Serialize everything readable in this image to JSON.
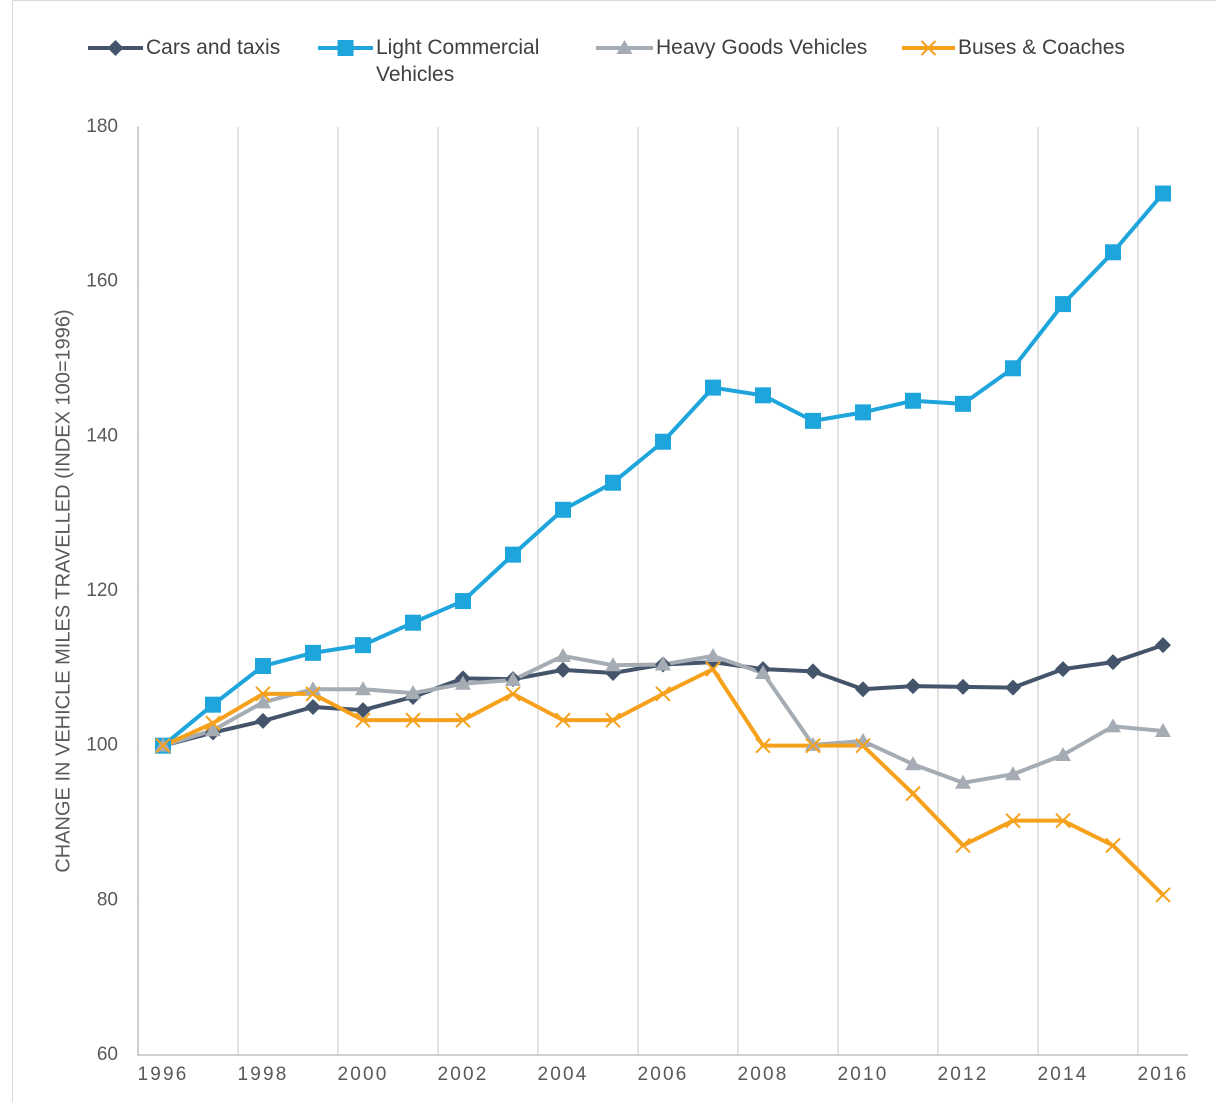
{
  "chart_data": {
    "type": "line",
    "y_label": "CHANGE IN VEHICLE MILES TRAVELLED (INDEX 100=1996)",
    "categories": [
      "1996",
      null,
      "1998",
      null,
      "2000",
      null,
      "2002",
      null,
      "2004",
      null,
      "2006",
      null,
      "2008",
      null,
      "2010",
      null,
      "2012",
      null,
      "2014",
      null,
      "2016"
    ],
    "ylim": [
      60,
      180
    ],
    "yticks": [
      60,
      80,
      100,
      120,
      140,
      160,
      180
    ],
    "legend": "top",
    "series": [
      {
        "name": "Cars and taxis",
        "color": "#44546a",
        "marker": "diamond",
        "values": [
          100,
          101.7,
          103.2,
          105,
          104.6,
          106.3,
          108.7,
          108.6,
          109.8,
          109.4,
          110.5,
          110.8,
          109.9,
          109.6,
          107.3,
          107.7,
          107.6,
          107.5,
          109.9,
          110.8,
          113
        ]
      },
      {
        "name": "Light Commercial Vehicles",
        "color": "#1ea5dc",
        "marker": "square",
        "values": [
          100,
          105.3,
          110.3,
          112,
          113,
          115.9,
          118.7,
          124.7,
          130.5,
          134,
          139.3,
          146.3,
          145.3,
          142,
          143.1,
          144.6,
          144.2,
          148.8,
          157.1,
          163.8,
          171.4
        ]
      },
      {
        "name": "Heavy Goods Vehicles",
        "color": "#a5acb3",
        "marker": "triangle",
        "values": [
          100,
          102,
          105.6,
          107.3,
          107.3,
          106.8,
          108,
          108.5,
          111.6,
          110.4,
          110.5,
          111.6,
          109.4,
          100.1,
          100.6,
          97.6,
          95.2,
          96.3,
          98.8,
          102.5,
          101.9
        ]
      },
      {
        "name": "Buses & Coaches",
        "color": "#f5a11c",
        "marker": "x",
        "values": [
          100,
          102.9,
          106.7,
          106.7,
          103.3,
          103.3,
          103.3,
          106.7,
          103.3,
          103.3,
          106.7,
          109.9,
          100,
          100,
          100,
          93.8,
          87.1,
          90.3,
          90.3,
          87.1,
          80.7
        ]
      }
    ]
  }
}
